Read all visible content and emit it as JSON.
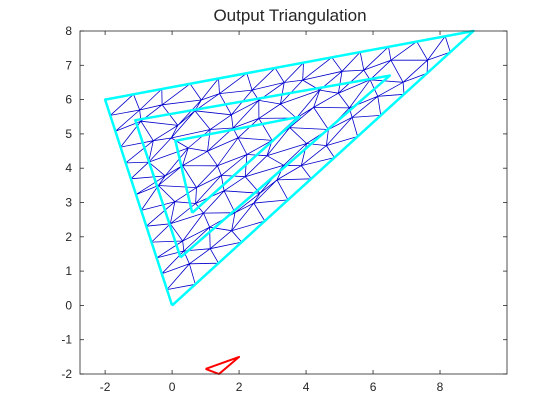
{
  "chart_data": {
    "type": "line",
    "title": "Output Triangulation",
    "xlabel": "",
    "ylabel": "",
    "xlim": [
      -2.75,
      10
    ],
    "ylim": [
      -2,
      8
    ],
    "x_ticks": [
      -2,
      0,
      2,
      4,
      6,
      8
    ],
    "y_ticks": [
      -2,
      -1,
      0,
      1,
      2,
      3,
      4,
      5,
      6,
      7,
      8
    ],
    "grid": false,
    "colors": {
      "boundary": "#00ffff",
      "mesh": "#0000cc",
      "small_triangle": "#ff0000",
      "axes": "#262626"
    },
    "series": [
      {
        "role": "outer-boundary",
        "points": [
          [
            0,
            0
          ],
          [
            9,
            8
          ],
          [
            -2,
            6
          ],
          [
            0,
            0
          ]
        ]
      },
      {
        "role": "inner-boundary-1",
        "points": [
          [
            0.25,
            1.4
          ],
          [
            6.5,
            6.7
          ],
          [
            -1.1,
            5.4
          ],
          [
            0.25,
            1.4
          ]
        ]
      },
      {
        "role": "inner-boundary-2",
        "points": [
          [
            0.6,
            2.7
          ],
          [
            3.8,
            5.5
          ],
          [
            0.1,
            4.8
          ],
          [
            0.6,
            2.7
          ]
        ]
      },
      {
        "role": "small-triangle",
        "points": [
          [
            1.0,
            -1.85
          ],
          [
            2.0,
            -1.5
          ],
          [
            1.4,
            -2.0
          ],
          [
            1.0,
            -1.85
          ]
        ]
      }
    ]
  }
}
